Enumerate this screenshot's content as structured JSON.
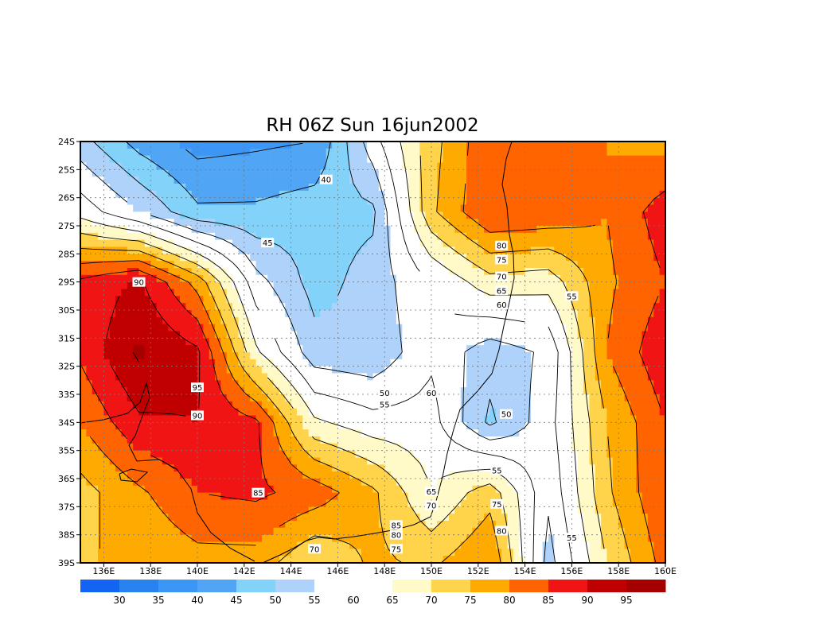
{
  "chart_data": {
    "type": "heatmap",
    "title": "RH 06Z Sun 16jun2002",
    "xlim": [
      135.0,
      160.0
    ],
    "ylim": [
      -39.0,
      -24.0
    ],
    "grid": "on",
    "x_ticks": [
      "136E",
      "138E",
      "140E",
      "142E",
      "144E",
      "146E",
      "148E",
      "150E",
      "152E",
      "154E",
      "156E",
      "158E",
      "160E"
    ],
    "y_ticks": [
      "24S",
      "25S",
      "26S",
      "27S",
      "28S",
      "29S",
      "30S",
      "31S",
      "32S",
      "33S",
      "34S",
      "35S",
      "36S",
      "37S",
      "38S",
      "39S"
    ],
    "colorbar": {
      "labels": [
        "30",
        "35",
        "40",
        "45",
        "50",
        "55",
        "60",
        "65",
        "70",
        "75",
        "80",
        "85",
        "90",
        "95"
      ],
      "colors": [
        "#1464f4",
        "#2882f0",
        "#3c96f5",
        "#50a5f5",
        "#82d2fa",
        "#afd2fa",
        "#ffffff",
        "#ffffff",
        "#fffac8",
        "#ffd34a",
        "#ffaa00",
        "#ff6400",
        "#f01414",
        "#c00000",
        "#a50000"
      ]
    },
    "rh_grid": {
      "lons": [
        135,
        137.5,
        140,
        142.5,
        145,
        147.5,
        150,
        152.5,
        155,
        157.5,
        160
      ],
      "lats": [
        -24,
        -26.5,
        -29,
        -31.5,
        -34,
        -36.5,
        -39
      ],
      "values": [
        [
          52,
          43,
          38,
          39,
          40,
          58,
          73,
          84,
          83,
          80,
          78
        ],
        [
          63,
          55,
          46,
          46,
          48,
          49,
          74,
          85,
          84,
          80,
          88
        ],
        [
          86,
          91,
          78,
          57,
          48,
          52,
          60,
          68,
          67,
          79,
          85
        ],
        [
          86,
          96,
          91,
          66,
          52,
          51,
          59,
          52,
          56,
          80,
          89
        ],
        [
          80,
          89,
          90,
          86,
          66,
          62,
          62,
          49,
          58,
          75,
          85
        ],
        [
          73,
          79,
          85,
          86,
          83,
          76,
          65,
          73,
          56,
          74,
          85
        ],
        [
          75,
          75,
          78,
          78,
          70,
          76,
          74,
          80,
          53,
          70,
          82
        ]
      ]
    },
    "contour_labels": [
      "40",
      "45",
      "50",
      "55",
      "60",
      "65",
      "70",
      "75",
      "80",
      "85",
      "90",
      "95"
    ]
  }
}
